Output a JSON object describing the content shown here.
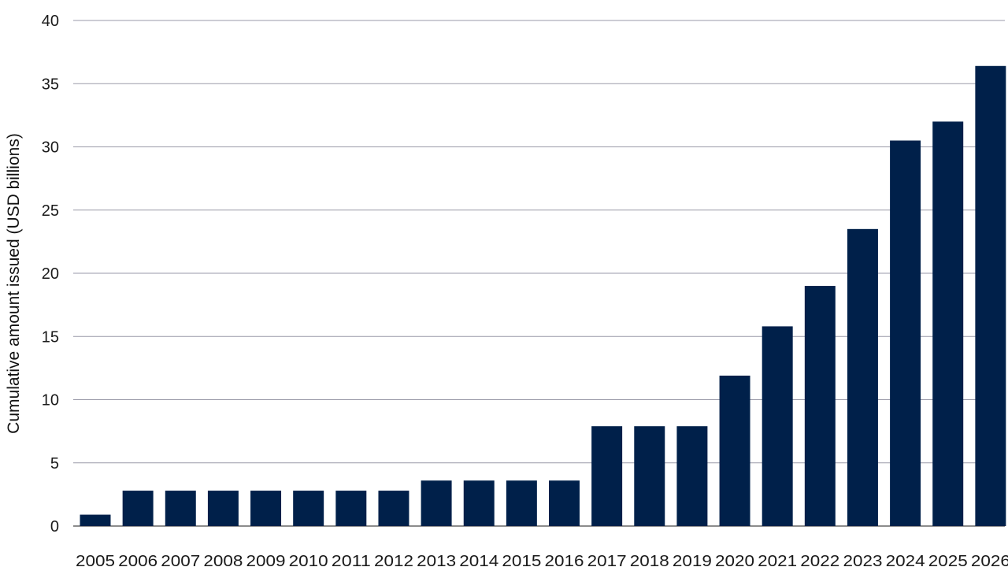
{
  "chart_data": {
    "type": "bar",
    "title": "",
    "xlabel": "",
    "ylabel": "Cumulative amount issued (USD billions)",
    "categories": [
      "2005",
      "2006",
      "2007",
      "2008",
      "2009",
      "2010",
      "2011",
      "2012",
      "2013",
      "2014",
      "2015",
      "2016",
      "2017",
      "2018",
      "2019",
      "2020",
      "2021",
      "2022",
      "2023",
      "2024",
      "2025",
      "2026"
    ],
    "values": [
      0.9,
      2.8,
      2.8,
      2.8,
      2.8,
      2.8,
      2.8,
      2.8,
      3.6,
      3.6,
      3.6,
      3.6,
      7.9,
      7.9,
      7.9,
      11.9,
      15.8,
      19.0,
      23.5,
      30.5,
      32.0,
      36.4
    ],
    "ylim": [
      0,
      40
    ],
    "yticks": [
      0,
      5,
      10,
      15,
      20,
      25,
      30,
      35,
      40
    ],
    "grid": true,
    "legend": "none",
    "bar_color": "#00204a",
    "grid_color": "#9a9aa8"
  }
}
